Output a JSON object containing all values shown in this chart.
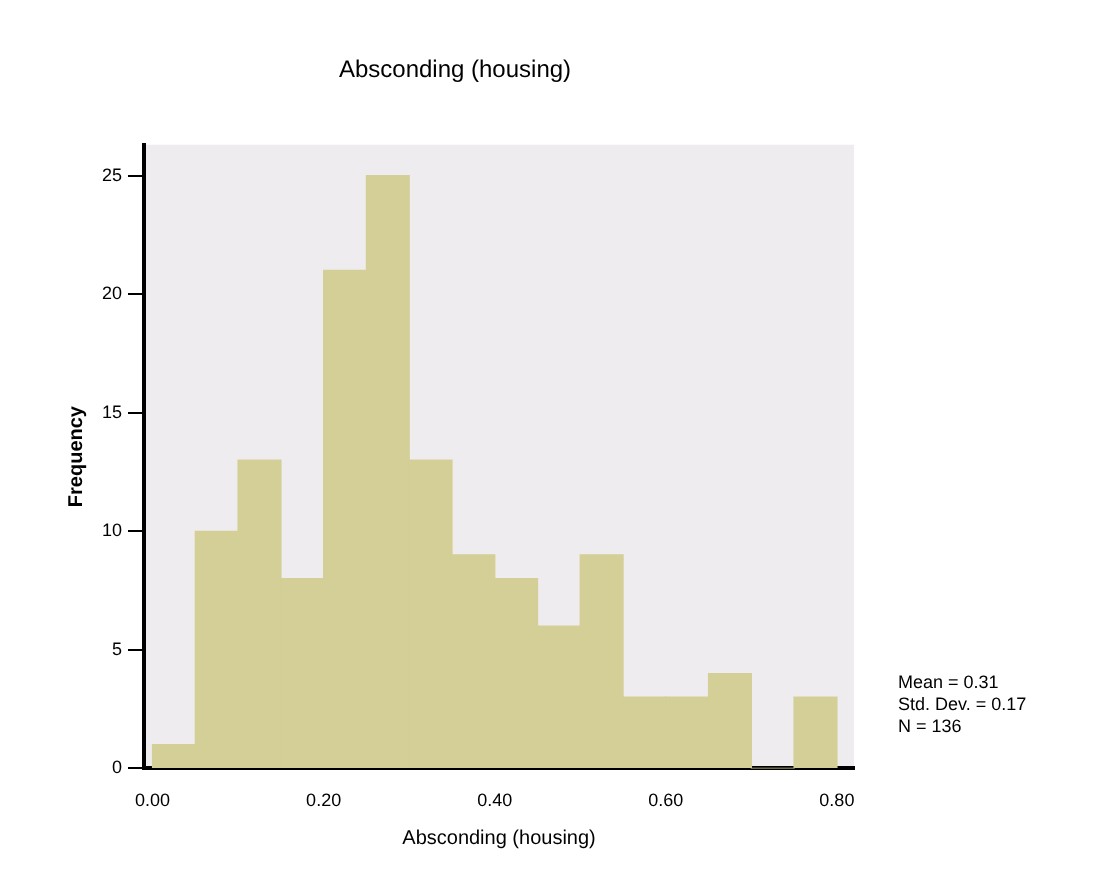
{
  "chart_data": {
    "type": "histogram",
    "title": "Absconding (housing)",
    "xlabel": "Absconding (housing)",
    "ylabel": "Frequency",
    "bins": [
      0,
      0.05,
      0.1,
      0.15,
      0.2,
      0.25,
      0.3,
      0.35,
      0.4,
      0.45,
      0.5,
      0.55,
      0.6,
      0.65,
      0.7,
      0.75,
      0.8
    ],
    "values": [
      1,
      10,
      13,
      8,
      21,
      25,
      13,
      9,
      8,
      6,
      9,
      3,
      3,
      4,
      0,
      3
    ],
    "color": "#d3cf96",
    "xlim": [
      -0.01,
      0.82
    ],
    "xticks": [
      {
        "value": 0,
        "label": "0.00"
      },
      {
        "value": 0.2,
        "label": "0.20"
      },
      {
        "value": 0.4,
        "label": "0.40"
      },
      {
        "value": 0.6,
        "label": "0.60"
      },
      {
        "value": 0.8,
        "label": "0.80"
      }
    ],
    "ylim": [
      0,
      26.3
    ],
    "yticks": [
      0,
      5,
      10,
      15,
      20,
      25
    ],
    "grid": false,
    "legend": false,
    "annotations": [
      "Mean = 0.31",
      "Std. Dev. = 0.17",
      "N = 136"
    ]
  }
}
